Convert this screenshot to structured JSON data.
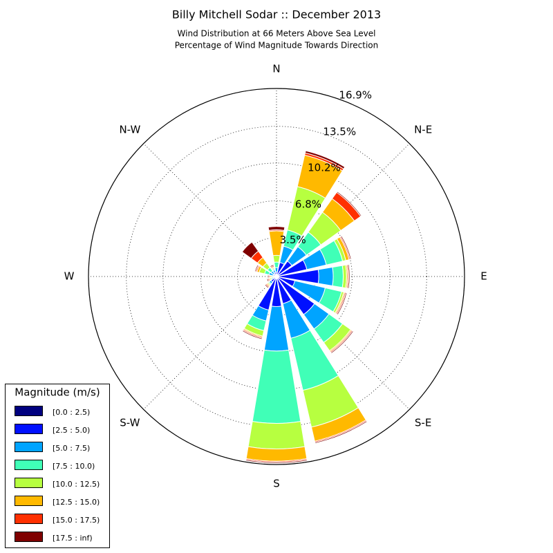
{
  "chart_data": {
    "type": "windrose",
    "title": "Billy Mitchell Sodar :: December 2013",
    "subtitle_lines": [
      "Wind Distribution at 66 Meters Above Sea Level",
      "Percentage of Wind Magnitude Towards Direction"
    ],
    "categories": [
      "N",
      null,
      "N-E",
      null,
      "E",
      null,
      "S-E",
      null,
      "S",
      null,
      "S-W",
      null,
      "W",
      null,
      "N-W",
      null
    ],
    "ylim": [
      0,
      16.9
    ],
    "yticks": [
      {
        "value": 3.5,
        "label": "3.5%"
      },
      {
        "value": 6.8,
        "label": "6.8%"
      },
      {
        "value": 10.2,
        "label": "10.2%"
      },
      {
        "value": 13.5,
        "label": "13.5%"
      },
      {
        "value": 16.9,
        "label": "16.9%"
      }
    ],
    "grid": true,
    "legend_title": "Magnitude (m/s)",
    "legend_position": "lower left",
    "series": [
      {
        "name": "[0.0 : 2.5)",
        "color": "#00007f",
        "values": [
          0.1,
          0.1,
          0.2,
          0.1,
          0.2,
          0.2,
          0.2,
          0.2,
          0.2,
          0.2,
          0.1,
          0.1,
          0.1,
          0.1,
          0.1,
          0.1
        ]
      },
      {
        "name": "[2.5 : 5.0)",
        "color": "#0010ff",
        "values": [
          0.3,
          1.2,
          1.5,
          2.7,
          3.6,
          1.5,
          4.0,
          2.3,
          2.5,
          2.9,
          0.5,
          0.2,
          0.1,
          0.2,
          0.2,
          0.3
        ]
      },
      {
        "name": "[5.0 : 7.5)",
        "color": "#00a4ff",
        "values": [
          0.4,
          1.5,
          1.6,
          1.8,
          1.3,
          2.8,
          1.6,
          3.2,
          4.0,
          1.0,
          0.2,
          0.1,
          0.1,
          0.4,
          0.3,
          0.2
        ]
      },
      {
        "name": "[7.5 : 10.0)",
        "color": "#40ffb7",
        "values": [
          0.5,
          1.5,
          1.6,
          1.5,
          0.9,
          1.5,
          1.5,
          4.8,
          6.5,
          0.9,
          0.1,
          0.1,
          0.1,
          0.4,
          0.4,
          0.1
        ]
      },
      {
        "name": "[10.0 : 12.5)",
        "color": "#b7ff40",
        "values": [
          0.6,
          4.0,
          2.2,
          0.3,
          0.3,
          0.2,
          0.9,
          3.4,
          2.3,
          0.5,
          0.1,
          0.1,
          0.1,
          0.5,
          0.5,
          0.1
        ]
      },
      {
        "name": "[12.5 : 15.0)",
        "color": "#ffb900",
        "values": [
          2.2,
          2.9,
          1.5,
          0.3,
          0.1,
          0.1,
          0.1,
          1.3,
          1.1,
          0.1,
          0.1,
          0.1,
          0.1,
          0.2,
          0.6,
          0.1
        ]
      },
      {
        "name": "[15.0 : 17.5)",
        "color": "#ff3000",
        "values": [
          0.1,
          0.2,
          0.7,
          0.1,
          0.1,
          0.1,
          0.1,
          0.1,
          0.1,
          0.1,
          0.1,
          0.1,
          0.1,
          0.1,
          0.7,
          0.1
        ]
      },
      {
        "name": "[17.5 : inf)",
        "color": "#7f0000",
        "values": [
          0.3,
          0.2,
          0.1,
          0.1,
          0.1,
          0.1,
          0.1,
          0.1,
          0.1,
          0.1,
          0.1,
          0.1,
          0.1,
          0.1,
          1.0,
          0.1
        ]
      }
    ]
  }
}
